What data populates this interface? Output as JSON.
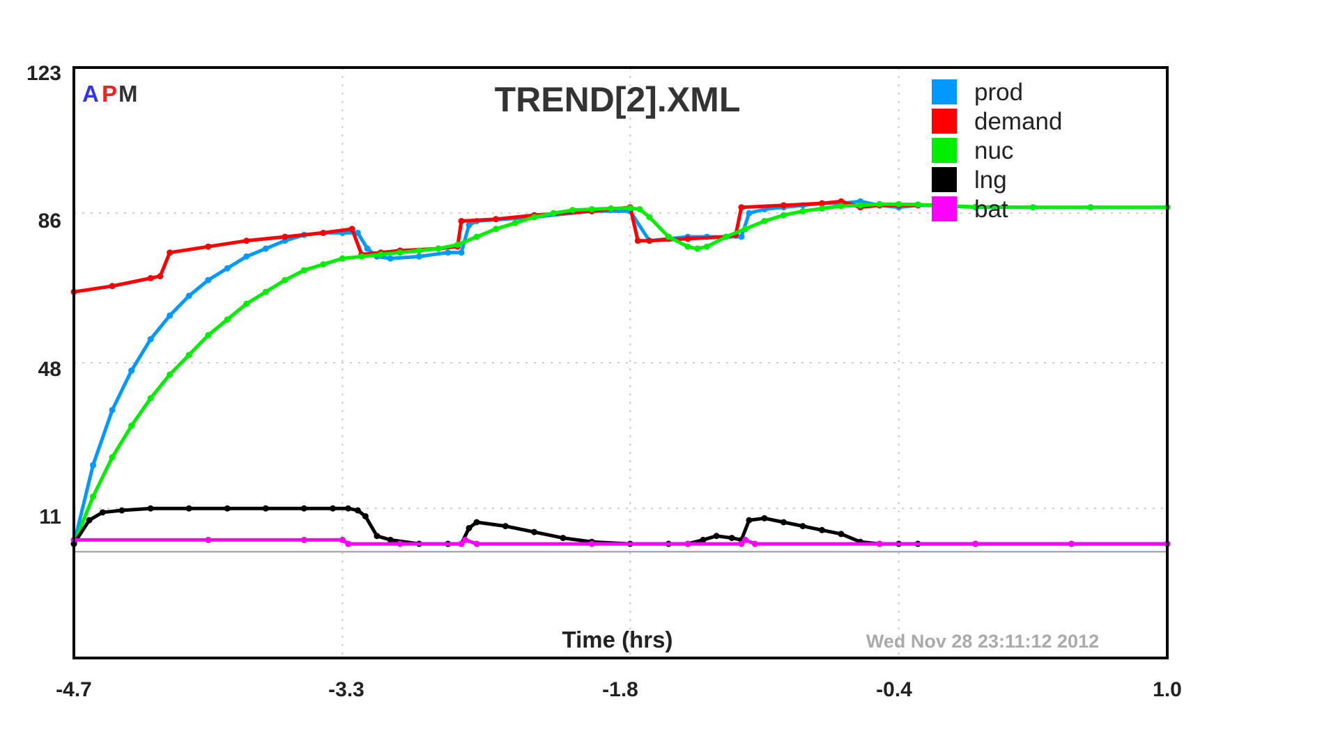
{
  "chart_data": {
    "type": "line",
    "title": "TREND[2].XML",
    "xlabel": "Time (hrs)",
    "ylabel": "",
    "timestamp": "Wed Nov 28 23:11:12 2012",
    "logo": {
      "a": "A",
      "p": "P",
      "m": "M",
      "colors": {
        "a": "#3333ee",
        "p": "#ee2222",
        "m": "#333333"
      }
    },
    "xlim": [
      -4.7,
      1.0
    ],
    "ylim": [
      -27,
      123
    ],
    "x_ticks": [
      "-4.7",
      "-3.3",
      "-1.8",
      "-0.4",
      "1.0"
    ],
    "y_ticks": [
      "123",
      "86",
      "48",
      "11"
    ],
    "grid": true,
    "legend_position": "top-right",
    "series": [
      {
        "name": "prod",
        "color": "#0099ff",
        "x": [
          -4.7,
          -4.6,
          -4.5,
          -4.4,
          -4.3,
          -4.2,
          -4.1,
          -4.0,
          -3.9,
          -3.8,
          -3.7,
          -3.6,
          -3.5,
          -3.4,
          -3.3,
          -3.22,
          -3.17,
          -3.12,
          -3.05,
          -2.9,
          -2.75,
          -2.68,
          -2.64,
          -2.6,
          -2.3,
          -2.0,
          -1.8,
          -1.7,
          -1.6,
          -1.5,
          -1.4,
          -1.3,
          -1.22,
          -1.18,
          -1.1,
          -1.0,
          -0.9,
          -0.8,
          -0.7,
          -0.6,
          -0.5,
          -0.4,
          -0.3,
          -0.2,
          0,
          0.3,
          0.6,
          1.0
        ],
        "values": [
          2,
          22,
          36,
          46,
          54,
          60,
          65,
          69,
          72,
          75,
          77,
          79,
          80.5,
          81,
          81,
          81,
          77,
          75,
          74.5,
          75,
          76,
          76,
          83,
          84,
          85,
          86.5,
          86.5,
          79,
          79.5,
          80,
          80,
          80,
          80,
          86,
          87,
          87.5,
          88,
          88.5,
          88.5,
          89,
          88,
          87.5,
          88,
          88,
          87.5,
          87.5,
          87.5,
          87.5
        ]
      },
      {
        "name": "demand",
        "color": "#ff0000",
        "x": [
          -4.7,
          -4.5,
          -4.3,
          -4.25,
          -4.2,
          -4.0,
          -3.8,
          -3.6,
          -3.4,
          -3.25,
          -3.2,
          -3.1,
          -3.0,
          -2.8,
          -2.7,
          -2.68,
          -2.5,
          -2.3,
          -2.0,
          -1.8,
          -1.76,
          -1.7,
          -1.5,
          -1.3,
          -1.25,
          -1.22,
          -1.0,
          -0.8,
          -0.7,
          -0.6,
          -0.5,
          -0.4,
          -0.3
        ],
        "values": [
          66,
          67.5,
          69.5,
          70,
          76,
          77.5,
          79,
          80,
          81,
          82,
          75.5,
          76,
          76.5,
          77,
          77.5,
          84,
          84.5,
          85.5,
          86.5,
          87.5,
          79,
          79,
          79.5,
          80,
          80.5,
          87.5,
          88,
          88.5,
          89,
          87.5,
          88,
          88,
          88
        ]
      },
      {
        "name": "nuc",
        "color": "#00ee00",
        "x": [
          -4.7,
          -4.6,
          -4.5,
          -4.4,
          -4.3,
          -4.2,
          -4.1,
          -4.0,
          -3.9,
          -3.8,
          -3.7,
          -3.6,
          -3.5,
          -3.4,
          -3.3,
          -3.2,
          -3.1,
          -3.0,
          -2.9,
          -2.8,
          -2.7,
          -2.6,
          -2.5,
          -2.4,
          -2.3,
          -2.2,
          -2.1,
          -2.0,
          -1.9,
          -1.8,
          -1.75,
          -1.7,
          -1.6,
          -1.5,
          -1.45,
          -1.4,
          -1.3,
          -1.2,
          -1.1,
          -1.0,
          -0.9,
          -0.8,
          -0.7,
          -0.6,
          -0.5,
          -0.4,
          -0.3,
          -0.2,
          0,
          0.3,
          0.6,
          1.0
        ],
        "values": [
          2,
          14,
          24,
          32,
          39,
          45,
          50,
          55,
          59,
          63,
          66,
          69,
          71.5,
          73,
          74.5,
          75,
          75.5,
          76,
          76.5,
          77,
          78,
          80,
          82,
          83.5,
          85,
          86,
          86.8,
          87,
          87.2,
          87.3,
          87,
          85,
          80,
          77.5,
          77,
          77.5,
          80,
          82,
          84,
          85.5,
          86.5,
          87.2,
          87.8,
          88,
          88.3,
          88.3,
          88.2,
          88,
          87.6,
          87.5,
          87.5,
          87.5
        ]
      },
      {
        "name": "lng",
        "color": "#000000",
        "x": [
          -4.7,
          -4.62,
          -4.55,
          -4.45,
          -4.3,
          -4.1,
          -3.9,
          -3.7,
          -3.5,
          -3.35,
          -3.27,
          -3.22,
          -3.18,
          -3.12,
          -3.05,
          -2.9,
          -2.75,
          -2.68,
          -2.64,
          -2.6,
          -2.45,
          -2.3,
          -2.15,
          -2.0,
          -1.8,
          -1.6,
          -1.5,
          -1.42,
          -1.35,
          -1.27,
          -1.22,
          -1.18,
          -1.1,
          -1.0,
          -0.9,
          -0.8,
          -0.7,
          -0.6,
          -0.5,
          -0.4,
          -0.3,
          0,
          0.5,
          1.0
        ],
        "values": [
          2,
          8,
          10,
          10.5,
          11,
          11,
          11,
          11,
          11,
          11,
          11,
          10.5,
          9,
          4,
          3,
          2,
          2,
          2,
          6,
          7.5,
          6.5,
          5,
          3.5,
          2.5,
          2,
          2,
          2,
          3,
          4,
          3.5,
          3,
          8,
          8.5,
          7.5,
          6.5,
          5.5,
          4.5,
          2.5,
          2,
          2,
          2,
          2,
          2,
          2
        ]
      },
      {
        "name": "bat",
        "color": "#ff00ff",
        "x": [
          -4.7,
          -4.0,
          -3.5,
          -3.3,
          -3.27,
          -3.0,
          -2.68,
          -2.66,
          -2.6,
          -2.0,
          -1.5,
          -1.22,
          -1.2,
          -1.15,
          -0.5,
          0,
          0.5,
          1.0
        ],
        "values": [
          3,
          3,
          3,
          3,
          2,
          2,
          2,
          3,
          2,
          2,
          2,
          2,
          3,
          2,
          2,
          2,
          2,
          2
        ]
      }
    ]
  }
}
